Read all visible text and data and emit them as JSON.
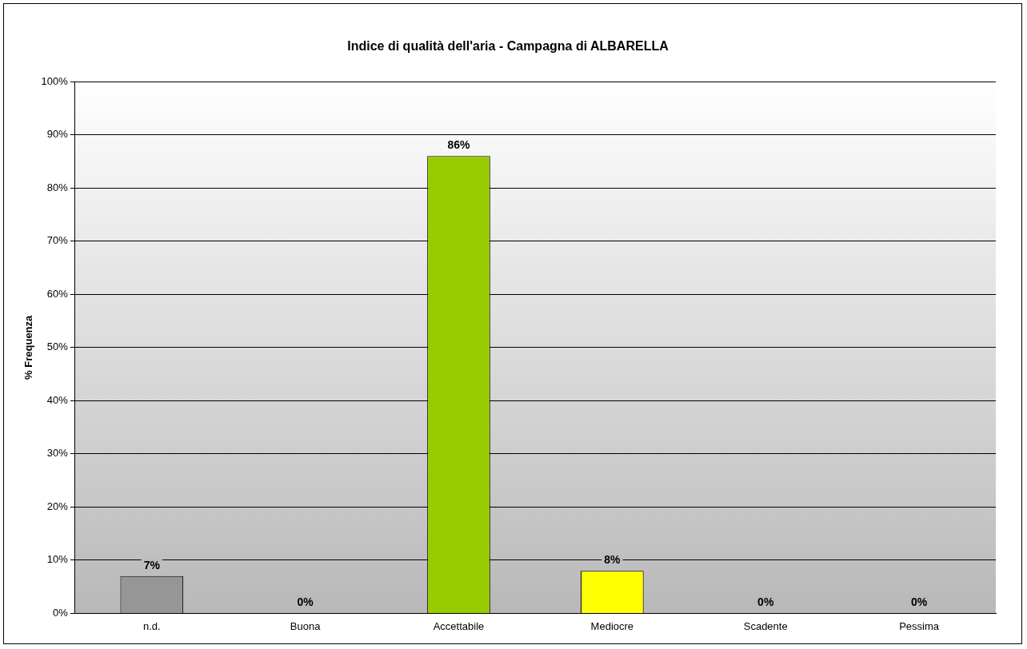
{
  "chart_data": {
    "type": "bar",
    "title": "Indice di qualità dell'aria - Campagna di ALBARELLA",
    "ylabel": "% Frequenza",
    "categories": [
      "n.d.",
      "Buona",
      "Accettabile",
      "Mediocre",
      "Scadente",
      "Pessima"
    ],
    "values": [
      7,
      0,
      86,
      8,
      0,
      0
    ],
    "colors": [
      "#969696",
      "#00ccff",
      "#99cc00",
      "#ffff00",
      "#ff9900",
      "#ff0000"
    ],
    "value_labels": [
      "7%",
      "0%",
      "86%",
      "8%",
      "0%",
      "0%"
    ],
    "ylim": [
      0,
      100
    ],
    "yticks": [
      {
        "value": 0,
        "label": "0%"
      },
      {
        "value": 10,
        "label": "10%"
      },
      {
        "value": 20,
        "label": "20%"
      },
      {
        "value": 30,
        "label": "30%"
      },
      {
        "value": 40,
        "label": "40%"
      },
      {
        "value": 50,
        "label": "50%"
      },
      {
        "value": 60,
        "label": "60%"
      },
      {
        "value": 70,
        "label": "70%"
      },
      {
        "value": 80,
        "label": "80%"
      },
      {
        "value": 90,
        "label": "90%"
      },
      {
        "value": 100,
        "label": "100%"
      }
    ],
    "grid": "y",
    "legend": false
  }
}
